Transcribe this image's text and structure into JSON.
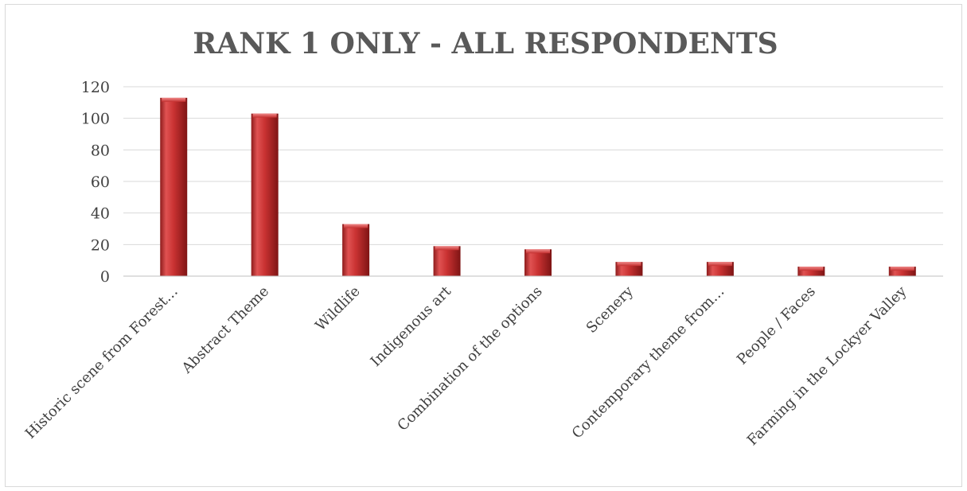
{
  "chart_data": {
    "type": "bar",
    "title": "RANK 1 ONLY - ALL RESPONDENTS",
    "categories": [
      "Historic scene from Forest…",
      "Abstract Theme",
      "Wildlife",
      "Indigenous art",
      "Combination of the options",
      "Scenery",
      "Contemporary theme from…",
      "People / Faces",
      "Farming in the Lockyer Valley"
    ],
    "values": [
      113,
      103,
      33,
      19,
      17,
      9,
      9,
      6,
      6
    ],
    "ylim": [
      0,
      120
    ],
    "yticks": [
      0,
      20,
      40,
      60,
      80,
      100,
      120
    ],
    "grid": true,
    "legend": "none",
    "bar_color": "#c0392b",
    "xlabel": "",
    "ylabel": ""
  }
}
